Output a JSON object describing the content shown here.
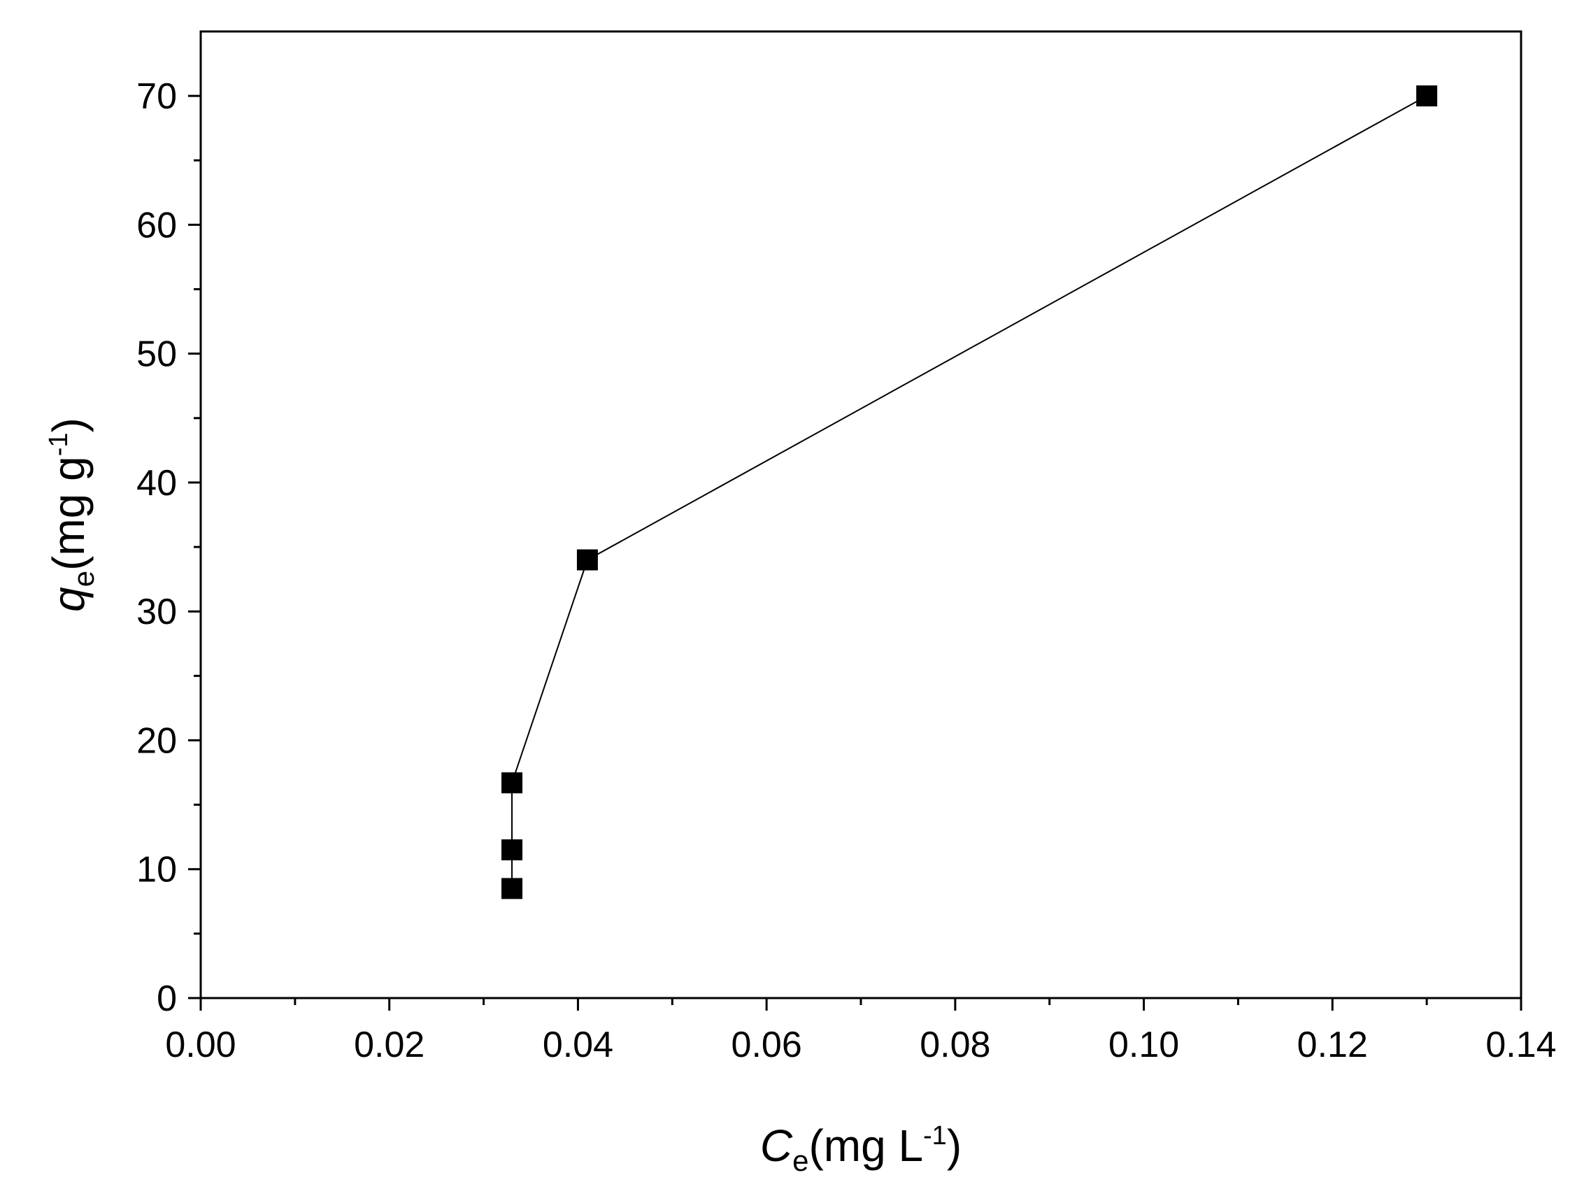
{
  "chart_data": {
    "type": "scatter",
    "title": "",
    "x": [
      0.033,
      0.033,
      0.033,
      0.041,
      0.13
    ],
    "y": [
      8.5,
      11.5,
      16.7,
      34.0,
      70.0
    ],
    "connected": true,
    "marker": "square",
    "xlim": [
      0.0,
      0.14
    ],
    "ylim": [
      0,
      75
    ],
    "xticks": [
      "0.00",
      "0.02",
      "0.04",
      "0.06",
      "0.08",
      "0.10",
      "0.12",
      "0.14"
    ],
    "yticks": [
      "0",
      "10",
      "20",
      "30",
      "40",
      "50",
      "60",
      "70"
    ],
    "xlabel": {
      "main": "C",
      "sub": "e",
      "unit": "(mg L",
      "sup": "-1",
      "close": ")"
    },
    "ylabel": {
      "main": "q",
      "sub": "e",
      "unit": "(mg g",
      "sup": "-1",
      "close": ")"
    },
    "grid": false,
    "colors": {
      "line": "#000000",
      "marker": "#000000"
    }
  }
}
